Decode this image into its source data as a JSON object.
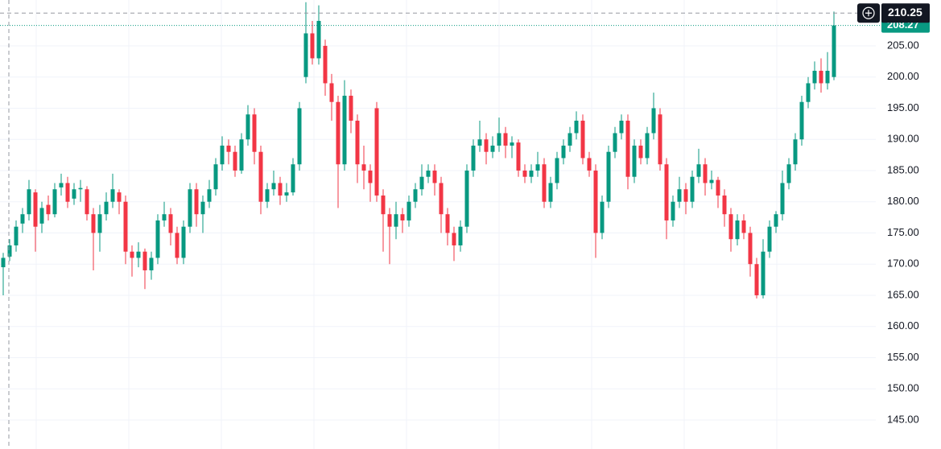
{
  "chart_data": {
    "type": "candlestick",
    "up_color": "#089981",
    "down_color": "#f23645",
    "ylim": [
      140.35,
      212.35
    ],
    "yticks": [
      {
        "value": 145,
        "label": "145.00"
      },
      {
        "value": 150,
        "label": "150.00"
      },
      {
        "value": 155,
        "label": "155.00"
      },
      {
        "value": 160,
        "label": "160.00"
      },
      {
        "value": 165,
        "label": "165.00"
      },
      {
        "value": 170,
        "label": "170.00"
      },
      {
        "value": 175,
        "label": "175.00"
      },
      {
        "value": 180,
        "label": "180.00"
      },
      {
        "value": 185,
        "label": "185.00"
      },
      {
        "value": 190,
        "label": "190.00"
      },
      {
        "value": 195,
        "label": "195.00"
      },
      {
        "value": 200,
        "label": "200.00"
      },
      {
        "value": 205,
        "label": "205.00"
      }
    ],
    "grid": true,
    "crosshair_price": 210.25,
    "last_price": 208.27,
    "candles": [
      [
        169.5,
        171.8,
        165,
        171
      ],
      [
        171.2,
        174,
        170.5,
        173
      ],
      [
        173,
        177,
        172,
        176
      ],
      [
        176.5,
        179,
        175,
        178
      ],
      [
        178,
        183.5,
        177,
        182
      ],
      [
        181.5,
        182,
        172,
        176
      ],
      [
        176.5,
        180,
        175,
        179
      ],
      [
        179.5,
        181,
        177,
        178
      ],
      [
        178,
        183,
        177.5,
        182
      ],
      [
        182.3,
        184.5,
        181,
        183
      ],
      [
        183,
        184,
        179,
        180
      ],
      [
        180.5,
        183,
        179.5,
        182
      ],
      [
        182,
        183.5,
        180,
        182.2
      ],
      [
        182,
        182.5,
        177,
        178
      ],
      [
        178,
        179,
        169,
        175
      ],
      [
        175,
        179.5,
        172,
        178
      ],
      [
        178,
        181.5,
        177,
        180
      ],
      [
        180,
        184.5,
        179,
        182
      ],
      [
        181.5,
        182,
        178,
        180
      ],
      [
        180,
        181,
        170,
        172
      ],
      [
        172,
        173,
        168,
        171
      ],
      [
        171,
        173.5,
        169.5,
        172
      ],
      [
        172,
        172.5,
        166,
        169
      ],
      [
        169,
        172,
        167.5,
        171
      ],
      [
        171,
        178,
        170,
        177
      ],
      [
        177,
        180,
        176,
        178
      ],
      [
        178,
        179,
        173,
        175
      ],
      [
        175,
        176,
        170,
        171
      ],
      [
        171,
        177,
        170,
        176
      ],
      [
        176,
        183,
        175,
        182
      ],
      [
        182,
        183,
        176,
        178
      ],
      [
        178,
        181,
        175,
        180
      ],
      [
        180,
        183.5,
        179,
        182
      ],
      [
        182,
        187,
        181,
        186
      ],
      [
        186,
        190.5,
        185,
        189
      ],
      [
        189,
        190,
        186,
        188
      ],
      [
        188,
        189,
        184,
        185
      ],
      [
        185,
        191,
        184.5,
        190
      ],
      [
        190,
        195.5,
        189,
        194
      ],
      [
        194,
        195,
        186,
        188
      ],
      [
        188,
        189,
        178,
        180
      ],
      [
        180,
        183,
        179,
        182
      ],
      [
        182,
        185,
        181,
        183
      ],
      [
        183,
        184,
        179.5,
        181
      ],
      [
        181,
        183,
        180,
        181.5
      ],
      [
        181.5,
        187,
        181,
        186
      ],
      [
        186,
        196,
        185,
        195
      ],
      [
        200,
        212,
        199,
        207
      ],
      [
        207,
        209,
        202,
        203
      ],
      [
        203,
        211.5,
        202,
        209
      ],
      [
        205,
        206,
        197,
        199
      ],
      [
        199,
        200.5,
        193,
        196
      ],
      [
        196,
        197,
        179,
        186
      ],
      [
        186,
        199.5,
        185,
        197
      ],
      [
        197,
        198,
        191,
        193
      ],
      [
        193,
        194,
        183,
        186
      ],
      [
        186,
        189,
        182,
        185
      ],
      [
        185,
        186,
        180,
        183
      ],
      [
        195,
        196,
        180,
        181
      ],
      [
        181,
        182,
        172,
        178
      ],
      [
        178,
        179,
        170,
        176
      ],
      [
        176,
        180,
        174,
        178
      ],
      [
        178,
        179,
        175,
        177
      ],
      [
        177,
        181,
        176,
        180
      ],
      [
        180,
        183,
        179,
        182
      ],
      [
        182,
        186,
        181,
        184
      ],
      [
        184,
        186,
        183,
        185
      ],
      [
        185,
        186,
        181,
        183
      ],
      [
        183,
        184,
        175,
        178
      ],
      [
        178,
        179,
        173,
        175
      ],
      [
        175,
        176,
        170.5,
        173
      ],
      [
        173,
        177,
        172,
        176
      ],
      [
        176,
        186,
        175,
        185
      ],
      [
        185,
        190,
        184,
        189
      ],
      [
        189,
        193,
        188,
        190
      ],
      [
        190,
        191,
        186,
        188
      ],
      [
        188,
        190.5,
        187,
        189
      ],
      [
        189,
        193.5,
        188,
        191
      ],
      [
        191,
        192,
        187,
        189
      ],
      [
        189,
        190.5,
        187,
        189.5
      ],
      [
        189.5,
        190,
        184,
        185
      ],
      [
        185,
        186,
        183,
        184
      ],
      [
        184,
        186,
        183,
        185
      ],
      [
        185,
        188,
        184,
        186
      ],
      [
        186,
        187,
        179,
        180
      ],
      [
        180,
        184,
        179,
        183
      ],
      [
        183,
        188,
        182,
        187
      ],
      [
        187,
        190,
        186,
        189
      ],
      [
        189,
        192,
        188,
        191
      ],
      [
        191,
        194.5,
        190,
        193
      ],
      [
        193,
        194,
        186,
        187
      ],
      [
        187,
        188,
        184,
        185
      ],
      [
        185,
        186,
        171,
        175
      ],
      [
        175,
        181,
        174,
        180
      ],
      [
        180,
        189,
        179,
        188
      ],
      [
        188,
        192,
        187,
        191
      ],
      [
        191,
        194,
        190,
        193
      ],
      [
        193,
        194,
        182,
        184
      ],
      [
        184,
        190,
        183,
        189
      ],
      [
        189,
        190,
        186,
        187
      ],
      [
        187,
        192,
        186,
        191
      ],
      [
        191,
        197.5,
        190,
        195
      ],
      [
        194,
        195,
        185,
        186
      ],
      [
        186,
        187,
        174,
        177
      ],
      [
        177,
        181,
        176,
        180
      ],
      [
        180,
        184,
        179,
        182
      ],
      [
        182,
        183,
        178,
        180
      ],
      [
        180,
        185,
        179,
        184
      ],
      [
        184,
        188.5,
        183,
        186
      ],
      [
        186,
        187,
        181,
        183
      ],
      [
        183,
        185,
        182,
        183.5
      ],
      [
        183.5,
        184,
        179,
        181
      ],
      [
        181,
        182,
        176,
        178
      ],
      [
        178,
        179,
        172,
        174
      ],
      [
        174,
        178,
        173,
        177
      ],
      [
        177,
        178,
        174,
        175
      ],
      [
        175,
        176,
        168,
        170
      ],
      [
        170,
        171,
        164.5,
        165
      ],
      [
        165,
        174,
        164.5,
        172
      ],
      [
        172,
        177,
        171,
        176
      ],
      [
        176,
        178.5,
        175,
        178
      ],
      [
        178,
        185,
        177,
        183
      ],
      [
        183,
        187,
        182,
        186
      ],
      [
        186,
        191,
        185,
        190
      ],
      [
        190,
        197,
        189,
        196
      ],
      [
        196,
        200,
        195,
        199
      ],
      [
        199,
        202.5,
        198,
        201
      ],
      [
        201,
        203,
        197.5,
        199
      ],
      [
        199,
        204,
        198,
        201
      ],
      [
        200,
        210.5,
        199.5,
        208.27
      ]
    ]
  }
}
